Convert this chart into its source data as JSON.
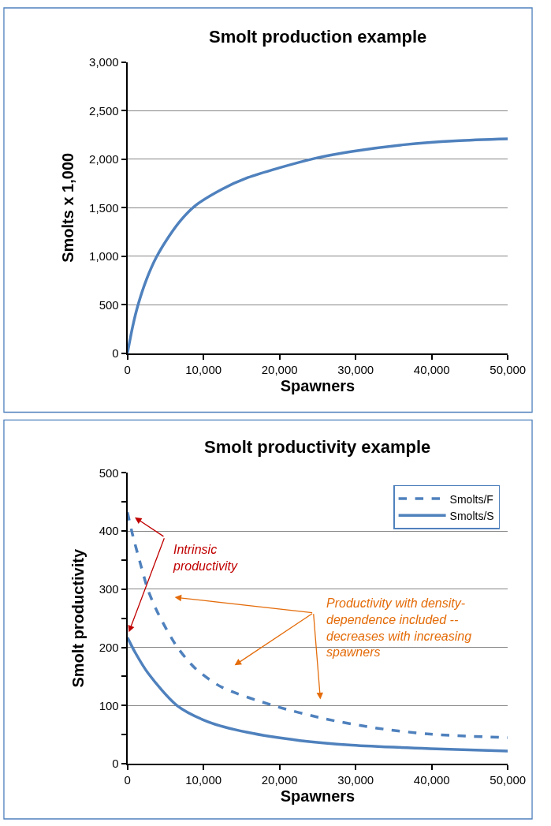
{
  "chart_data": [
    {
      "type": "line",
      "title": "Smolt production example",
      "xlabel": "Spawners",
      "ylabel": "Smolts x 1,000",
      "x": [
        0,
        700,
        1400,
        2500,
        3800,
        5500,
        7000,
        8900,
        12400,
        15800,
        19900,
        24700,
        29500,
        36400,
        43200,
        50000
      ],
      "series": [
        {
          "color": "#4f81bd",
          "values": [
            0,
            280,
            500,
            760,
            990,
            1210,
            1370,
            1520,
            1690,
            1810,
            1910,
            2010,
            2080,
            2150,
            2190,
            2210
          ],
          "line_style": "solid"
        }
      ],
      "xlim": [
        0,
        50000
      ],
      "ylim": [
        0,
        3000
      ],
      "xticks": [
        0,
        {
          "value": 10000,
          "label": "10,000"
        },
        {
          "value": 20000,
          "label": "20,000"
        },
        {
          "value": 30000,
          "label": "30,000"
        },
        {
          "value": 40000,
          "label": "40,000"
        },
        {
          "value": 50000,
          "label": "50,000"
        }
      ],
      "yticks": [
        0,
        500,
        {
          "value": 1000,
          "label": "1,000"
        },
        {
          "value": 1500,
          "label": "1,500"
        },
        {
          "value": 2000,
          "label": "2,000"
        },
        {
          "value": 2500,
          "label": "2,500"
        },
        {
          "value": 3000,
          "label": "3,000"
        }
      ],
      "grid": "y",
      "legend": false,
      "marker": "none"
    },
    {
      "type": "line",
      "title": "Smolt productivity example",
      "xlabel": "Spawners",
      "ylabel": "Smolt productivity",
      "series": [
        {
          "name": "Smolts/F",
          "color": "#4f81bd",
          "line_style": "dashed",
          "x": [
            0,
            690,
            1720,
            2750,
            4120,
            6520,
            8920,
            12350,
            19210,
            26070,
            32940,
            39800,
            50000
          ],
          "values": [
            432,
            393,
            343,
            297,
            256,
            201,
            164,
            132,
            100,
            77,
            61,
            51,
            45
          ]
        },
        {
          "name": "Smolts/S",
          "color": "#4f81bd",
          "line_style": "solid",
          "x": [
            0,
            1030,
            2750,
            6520,
            10640,
            15780,
            22650,
            29500,
            39800,
            50000
          ],
          "values": [
            217,
            191,
            155,
            100,
            72,
            54,
            40,
            32,
            26,
            22
          ]
        }
      ],
      "xlim": [
        0,
        50000
      ],
      "ylim": [
        0,
        500
      ],
      "xticks": [
        0,
        {
          "value": 10000,
          "label": "10,000"
        },
        {
          "value": 20000,
          "label": "20,000"
        },
        {
          "value": 30000,
          "label": "30,000"
        },
        {
          "value": 40000,
          "label": "40,000"
        },
        {
          "value": 50000,
          "label": "50,000"
        }
      ],
      "yticks": [
        0,
        {
          "value": 50,
          "label": null
        },
        100,
        {
          "value": 150,
          "label": null
        },
        200,
        {
          "value": 250,
          "label": null
        },
        300,
        {
          "value": 350,
          "label": null
        },
        400,
        {
          "value": 450,
          "label": null
        },
        500
      ],
      "grid": "y",
      "legend": "top right",
      "marker": "none",
      "annotations": [
        "Intrinsic\nproductivity",
        "Productivity with density-\ndependence included --\ndecreases with increasing\nspawners"
      ]
    }
  ]
}
